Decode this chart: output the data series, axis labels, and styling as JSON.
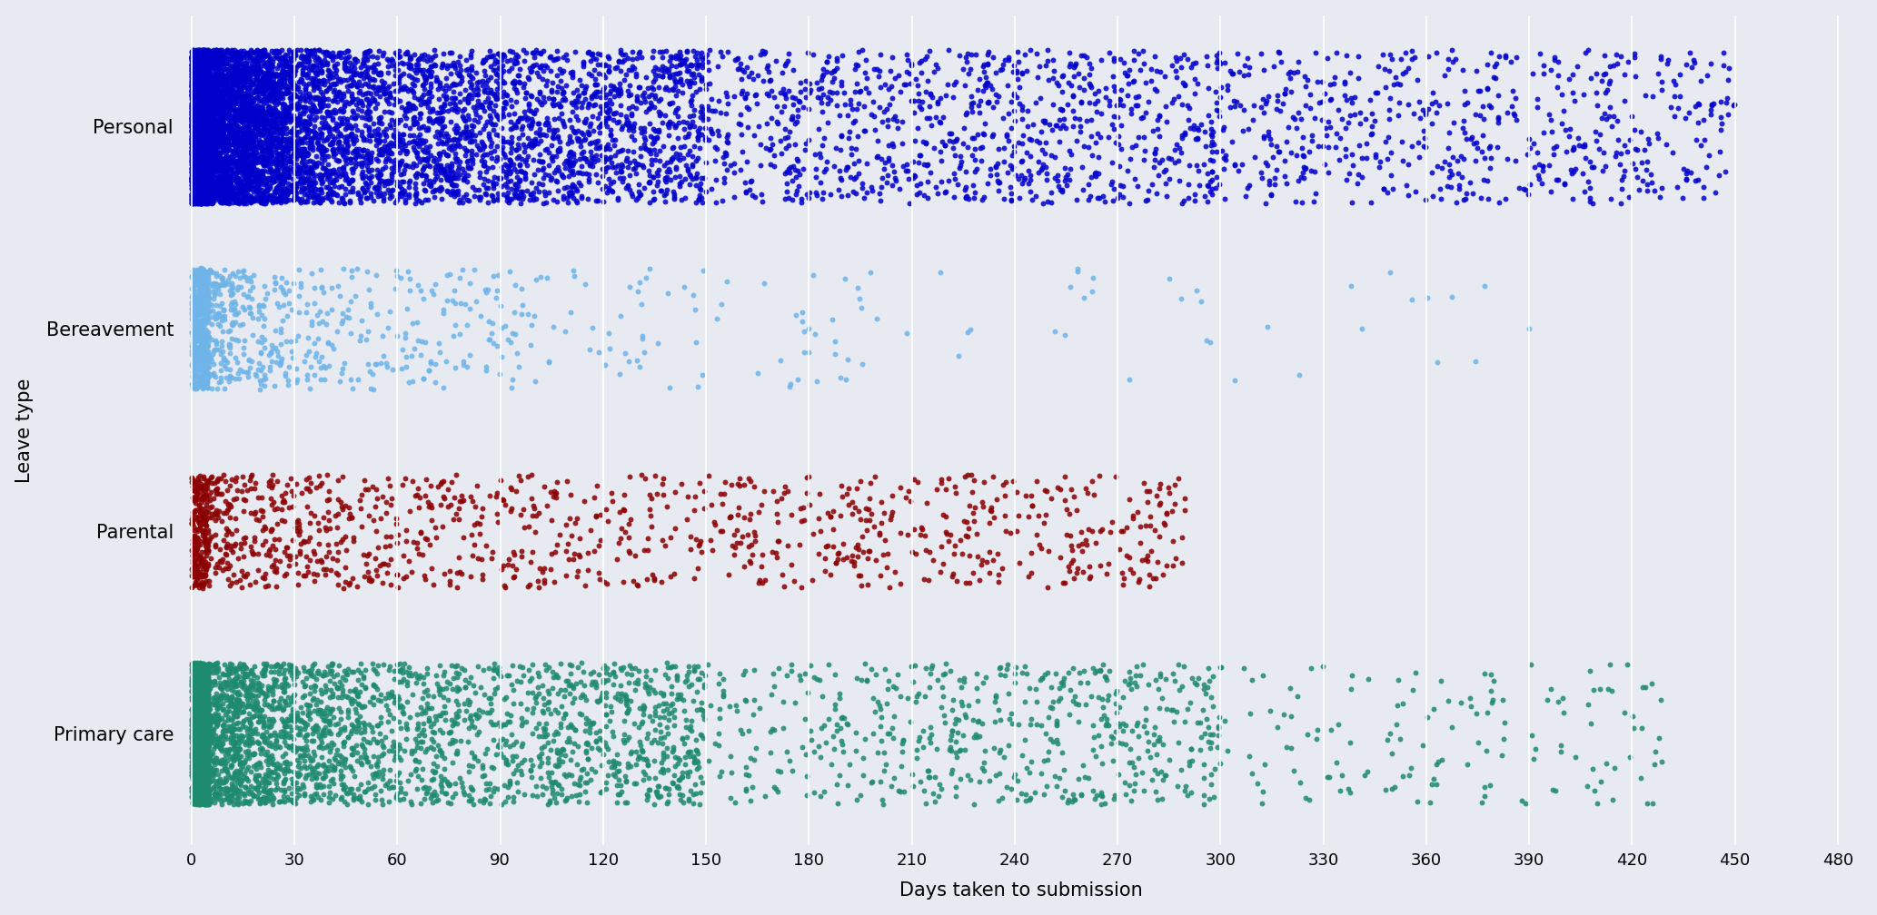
{
  "categories": [
    "Personal",
    "Bereavement",
    "Parental",
    "Primary care"
  ],
  "colors": [
    "#0000CD",
    "#6EB4E8",
    "#8B0000",
    "#1E8A6E"
  ],
  "xlim": [
    -3,
    487
  ],
  "xticks": [
    0,
    30,
    60,
    90,
    120,
    150,
    180,
    210,
    240,
    270,
    300,
    330,
    360,
    390,
    420,
    450,
    480
  ],
  "xlabel": "Days taken to submission",
  "ylabel": "Leave type",
  "background_color": "#E8EAF2",
  "outer_background": "#E8EAF2",
  "grid_color": "#FFFFFF",
  "dot_size": 18,
  "alpha": 0.85,
  "jitter_personal": 0.38,
  "jitter_bereavement": 0.3,
  "jitter_parental": 0.28,
  "jitter_primary": 0.35,
  "tick_fontsize": 13,
  "label_fontsize": 15
}
